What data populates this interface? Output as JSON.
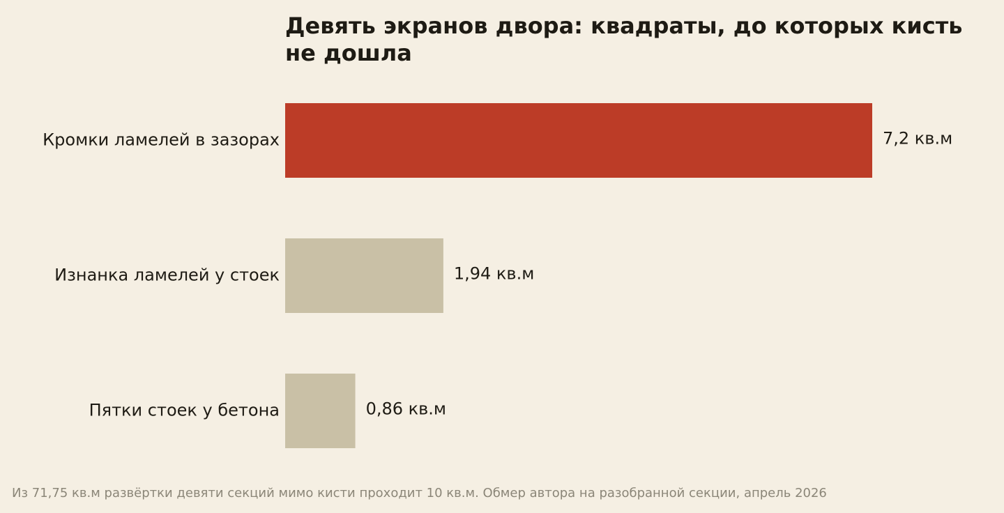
{
  "chart_data": {
    "type": "bar",
    "orientation": "horizontal",
    "title": "Девять экранов двора: квадраты, до которых кисть не дошла",
    "categories": [
      "Кромки ламелей в зазорах",
      "Изнанка ламелей у стоек",
      "Пятки стоек у бетона"
    ],
    "values": [
      7.2,
      1.94,
      0.86
    ],
    "value_labels": [
      "7,2 кв.м",
      "1,94 кв.м",
      "0,86 кв.м"
    ],
    "unit": "кв.м",
    "colors": [
      "#bc3c27",
      "#c9c0a6",
      "#c9c0a6"
    ],
    "highlight_color": "#bc3c27",
    "base_color": "#c9c0a6",
    "xlim": [
      0,
      7.2
    ],
    "grid": false,
    "axes_visible": false,
    "legend": "none"
  },
  "footnote": "Из 71,75 кв.м развёртки девяти секций мимо кисти проходит 10 кв.м. Обмер автора на разобранной секции, апрель 2026",
  "colors": {
    "background": "#f5efe3",
    "text": "#1e1b14",
    "footnote": "#8b8678"
  }
}
